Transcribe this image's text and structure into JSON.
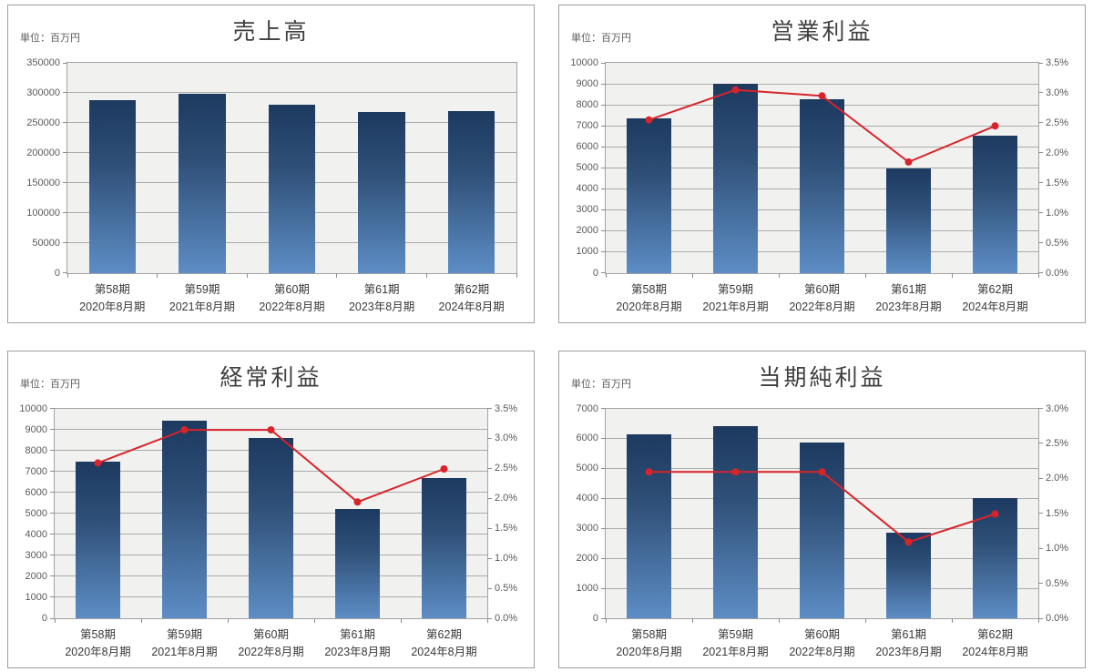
{
  "unit_label": "単位：百万円",
  "colors": {
    "bar_gradient_top": "#1d3a60",
    "bar_gradient_mid": "#2f5078",
    "bar_gradient_bottom": "#5d8dc5",
    "ratio_line": "#d8232b",
    "plot_background": "#f1f1ef",
    "gridline": "#ababab",
    "box_border": "#9e9e9e",
    "tick_text": "#595959",
    "title_text": "#3f3f3f"
  },
  "categories": [
    "第58期",
    "第59期",
    "第60期",
    "第61期",
    "第62期"
  ],
  "category_periods": [
    "2020年8月期",
    "2021年8月期",
    "2022年8月期",
    "2023年8月期",
    "2024年8月期"
  ],
  "chart_data": [
    {
      "type": "bar",
      "title": "売上高",
      "unit_label": "単位：百万円",
      "categories": [
        "第58期",
        "第59期",
        "第60期",
        "第61期",
        "第62期"
      ],
      "category_periods": [
        "2020年8月期",
        "2021年8月期",
        "2022年8月期",
        "2023年8月期",
        "2024年8月期"
      ],
      "series": [
        {
          "type": "bar",
          "axis": "left",
          "values": [
            288000,
            298000,
            280000,
            268000,
            270000
          ]
        }
      ],
      "left_axis": {
        "min": 0,
        "max": 350000,
        "step": 50000,
        "ticks": [
          "350000",
          "300000",
          "250000",
          "200000",
          "150000",
          "100000",
          "50000",
          "0"
        ]
      },
      "grid": true,
      "legend": false
    },
    {
      "type": "bar",
      "title": "営業利益",
      "unit_label": "単位：百万円",
      "categories": [
        "第58期",
        "第59期",
        "第60期",
        "第61期",
        "第62期"
      ],
      "category_periods": [
        "2020年8月期",
        "2021年8月期",
        "2022年8月期",
        "2023年8月期",
        "2024年8月期"
      ],
      "series": [
        {
          "type": "bar",
          "axis": "left",
          "values": [
            7350,
            9000,
            8250,
            4950,
            6550
          ]
        },
        {
          "type": "line",
          "axis": "right",
          "values": [
            2.55,
            3.05,
            2.95,
            1.85,
            2.45
          ]
        }
      ],
      "left_axis": {
        "min": 0,
        "max": 10000,
        "step": 1000,
        "ticks": [
          "10000",
          "9000",
          "8000",
          "7000",
          "6000",
          "5000",
          "4000",
          "3000",
          "2000",
          "1000",
          "0"
        ]
      },
      "right_axis": {
        "min": 0,
        "max": 3.5,
        "step": 0.5,
        "format": "percent",
        "ticks": [
          "3.5%",
          "3.0%",
          "2.5%",
          "2.0%",
          "1.5%",
          "1.0%",
          "0.5%",
          "0.0%"
        ]
      },
      "grid": true,
      "legend": false
    },
    {
      "type": "bar",
      "title": "経常利益",
      "unit_label": "単位：百万円",
      "categories": [
        "第58期",
        "第59期",
        "第60期",
        "第61期",
        "第62期"
      ],
      "category_periods": [
        "2020年8月期",
        "2021年8月期",
        "2022年8月期",
        "2023年8月期",
        "2024年8月期"
      ],
      "series": [
        {
          "type": "bar",
          "axis": "left",
          "values": [
            7450,
            9400,
            8600,
            5200,
            6700
          ]
        },
        {
          "type": "line",
          "axis": "right",
          "values": [
            2.6,
            3.15,
            3.15,
            1.95,
            2.5
          ]
        }
      ],
      "left_axis": {
        "min": 0,
        "max": 10000,
        "step": 1000,
        "ticks": [
          "10000",
          "9000",
          "8000",
          "7000",
          "6000",
          "5000",
          "4000",
          "3000",
          "2000",
          "1000",
          "0"
        ]
      },
      "right_axis": {
        "min": 0,
        "max": 3.5,
        "step": 0.5,
        "format": "percent",
        "ticks": [
          "3.5%",
          "3.0%",
          "2.5%",
          "2.0%",
          "1.5%",
          "1.0%",
          "0.5%",
          "0.0%"
        ]
      },
      "grid": true,
      "legend": false
    },
    {
      "type": "bar",
      "title": "当期純利益",
      "unit_label": "単位：百万円",
      "categories": [
        "第58期",
        "第59期",
        "第60期",
        "第61期",
        "第62期"
      ],
      "category_periods": [
        "2020年8月期",
        "2021年8月期",
        "2022年8月期",
        "2023年8月期",
        "2024年8月期"
      ],
      "series": [
        {
          "type": "bar",
          "axis": "left",
          "values": [
            6150,
            6400,
            5850,
            2850,
            4000
          ]
        },
        {
          "type": "line",
          "axis": "right",
          "values": [
            2.1,
            2.1,
            2.1,
            1.1,
            1.5
          ]
        }
      ],
      "left_axis": {
        "min": 0,
        "max": 7000,
        "step": 1000,
        "ticks": [
          "7000",
          "6000",
          "5000",
          "4000",
          "3000",
          "2000",
          "1000",
          "0"
        ]
      },
      "right_axis": {
        "min": 0,
        "max": 3.0,
        "step": 0.5,
        "format": "percent",
        "ticks": [
          "3.0%",
          "2.5%",
          "2.0%",
          "1.5%",
          "1.0%",
          "0.5%",
          "0.0%"
        ]
      },
      "grid": true,
      "legend": false
    }
  ]
}
